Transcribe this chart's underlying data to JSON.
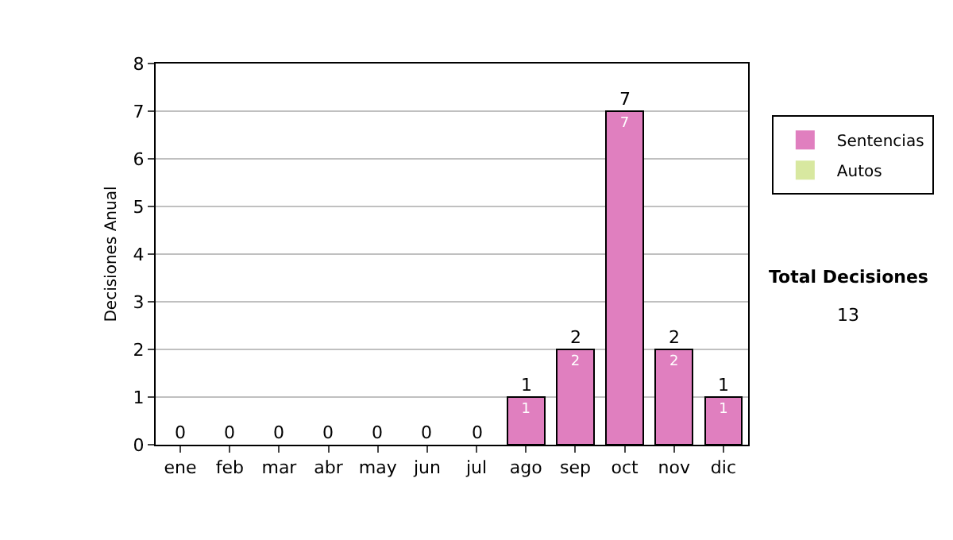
{
  "chart_data": {
    "type": "bar",
    "stacked": true,
    "ylabel": "Decisiones Anual",
    "categories": [
      "ene",
      "feb",
      "mar",
      "abr",
      "may",
      "jun",
      "jul",
      "ago",
      "sep",
      "oct",
      "nov",
      "dic"
    ],
    "series": [
      {
        "name": "Sentencias",
        "color": "#e07fbf",
        "values": [
          0,
          0,
          0,
          0,
          0,
          0,
          0,
          1,
          2,
          7,
          2,
          1
        ],
        "value_labels": [
          null,
          null,
          null,
          null,
          null,
          null,
          null,
          "1",
          "2",
          "7",
          "2",
          "1"
        ]
      },
      {
        "name": "Autos",
        "color": "#d8e8a0",
        "values": [
          0,
          0,
          0,
          0,
          0,
          0,
          0,
          0,
          0,
          0,
          0,
          0
        ]
      }
    ],
    "totals": [
      "0",
      "0",
      "0",
      "0",
      "0",
      "0",
      "0",
      "1",
      "2",
      "7",
      "2",
      "1"
    ],
    "ylim": [
      0,
      8
    ],
    "yticks": [
      0,
      1,
      2,
      3,
      4,
      5,
      6,
      7,
      8
    ],
    "grid": "y",
    "legend": "right",
    "annotations": [
      "Total Decisiones",
      "13"
    ]
  }
}
